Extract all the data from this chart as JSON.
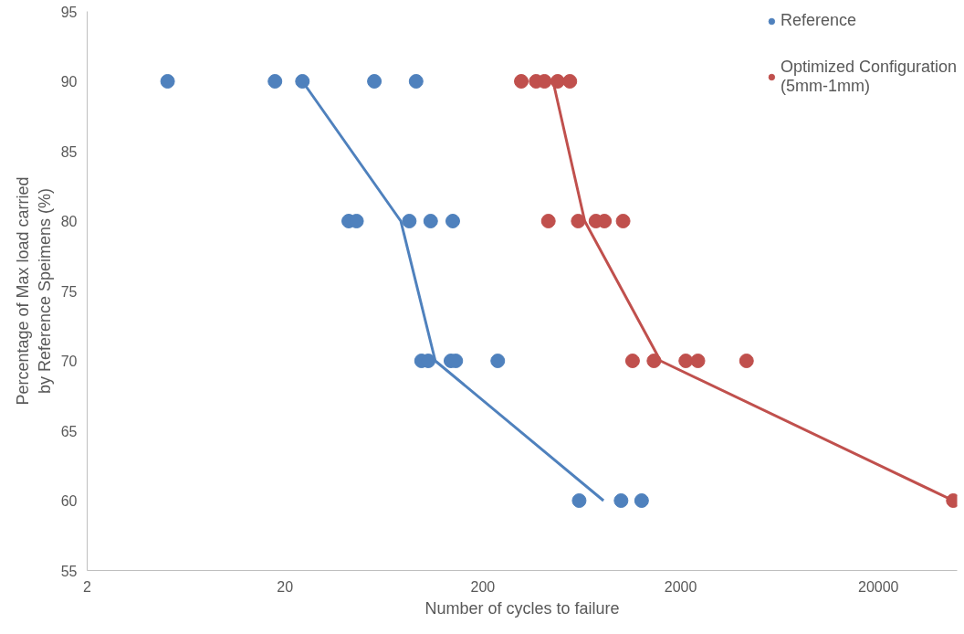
{
  "chart_data": {
    "type": "scatter",
    "xlabel": "Number of cycles to failure",
    "ylabel": "Percentage of Max load carried by Reference Speimens (%)",
    "log": "x",
    "xlim": [
      2,
      50000
    ],
    "xticks": [
      2,
      20,
      200,
      2000,
      20000
    ],
    "ylim": [
      55,
      95
    ],
    "yticks": [
      55,
      60,
      65,
      70,
      75,
      80,
      85,
      90,
      95
    ],
    "grid": false,
    "legend": "top right",
    "series": [
      {
        "name": "Reference",
        "color": "#4f81bd",
        "marker": "circle",
        "x": [
          5.1,
          17.8,
          24.5,
          56.6,
          92,
          42,
          46,
          85,
          109,
          141,
          98,
          106,
          138,
          146,
          238,
          614,
          1000,
          1270
        ],
        "values": [
          90,
          90,
          90,
          90,
          90,
          80,
          80,
          80,
          80,
          80,
          70,
          70,
          70,
          70,
          70,
          60,
          60,
          60
        ]
      },
      {
        "name": "Optimized Configuration (5mm-1mm)",
        "color": "#c0504d",
        "marker": "circle",
        "x": [
          313,
          372,
          410,
          478,
          551,
          429,
          607,
          746,
          824,
          1024,
          1143,
          1466,
          2124,
          2446,
          4306,
          47800
        ],
        "values": [
          90,
          90,
          90,
          90,
          90,
          80,
          80,
          80,
          80,
          80,
          70,
          70,
          70,
          70,
          70,
          60
        ]
      },
      {
        "color": "#4f81bd",
        "type": "line",
        "marker": "none",
        "line_style": "solid",
        "x": [
          24.5,
          77,
          115,
          815
        ],
        "values": [
          90,
          80,
          70,
          60
        ]
      },
      {
        "color": "#c0504d",
        "type": "line",
        "marker": "none",
        "line_style": "solid",
        "x": [
          453,
          655,
          1582,
          47800
        ],
        "values": [
          90,
          80,
          70,
          60
        ]
      }
    ]
  }
}
